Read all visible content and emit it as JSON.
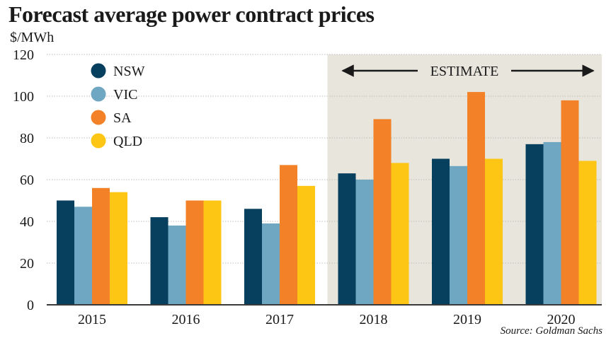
{
  "title": "Forecast average power contract prices",
  "unit_label": "$/MWh",
  "source": "Source: Goldman Sachs",
  "colors": {
    "NSW": "#073f5e",
    "VIC": "#6fa6c2",
    "SA": "#f28127",
    "QLD": "#fdc614",
    "estimate_band": "#e7e5dc",
    "axis": "#3a3a3a",
    "grid": "#bdbdbd"
  },
  "chart_data": {
    "type": "bar",
    "title": "Forecast average power contract prices",
    "ylabel": "$/MWh",
    "xlabel": "",
    "categories": [
      "2015",
      "2016",
      "2017",
      "2018",
      "2019",
      "2020"
    ],
    "series": [
      {
        "name": "NSW",
        "values": [
          50,
          42,
          46,
          63,
          70,
          77
        ]
      },
      {
        "name": "VIC",
        "values": [
          47,
          38,
          39,
          60,
          66.5,
          78
        ]
      },
      {
        "name": "SA",
        "values": [
          56,
          50,
          67,
          89,
          102,
          98
        ]
      },
      {
        "name": "QLD",
        "values": [
          54,
          50,
          57,
          68,
          70,
          69
        ]
      }
    ],
    "ylim": [
      0,
      120
    ],
    "yticks": [
      0,
      20,
      40,
      60,
      80,
      100,
      120
    ],
    "grid": true,
    "legend": "top-left",
    "estimate": {
      "label": "ESTIMATE",
      "from": "2018",
      "to": "2020"
    }
  }
}
